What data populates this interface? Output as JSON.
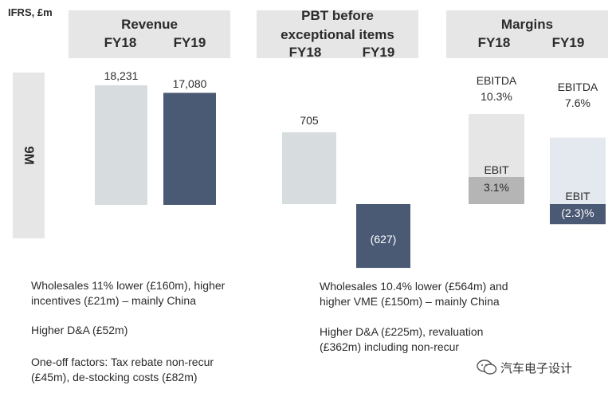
{
  "unit_label": "IFRS, £m",
  "period_label": "9M",
  "chart_data": [
    {
      "type": "bar",
      "title": "Revenue",
      "categories": [
        "FY18",
        "FY19"
      ],
      "values": [
        18231,
        17080
      ],
      "labels": [
        "18,231",
        "17,080"
      ],
      "colors": [
        "#d7dcdf",
        "#4b5a74"
      ]
    },
    {
      "type": "bar",
      "title": "PBT before exceptional items",
      "title_lines": [
        "PBT before",
        "exceptional items"
      ],
      "categories": [
        "FY18",
        "FY19"
      ],
      "values": [
        705,
        -627
      ],
      "labels": [
        "705",
        "(627)"
      ],
      "colors": [
        "#d7dcdf",
        "#4b5a74"
      ]
    },
    {
      "type": "bar",
      "title": "Margins",
      "categories": [
        "FY18",
        "FY19"
      ],
      "series": [
        {
          "name": "EBITDA",
          "values": [
            10.3,
            7.6
          ],
          "labels": [
            "10.3%",
            "7.6%"
          ]
        },
        {
          "name": "EBIT",
          "values": [
            3.1,
            -2.3
          ],
          "labels": [
            "3.1%",
            "(2.3)%"
          ]
        }
      ],
      "colors": {
        "fy18_ebitda": "#e6e6e6",
        "fy18_ebit": "#b5b5b5",
        "fy19_ebitda": "#e3e9ef",
        "fy19_ebit": "#4b5a74"
      }
    }
  ],
  "notes_left": [
    [
      "Wholesales 11% lower (£160m), higher",
      "incentives (£21m) – mainly China"
    ],
    [
      "Higher D&A (£52m)"
    ],
    [
      "One-off factors: Tax rebate non-recur",
      "(£45m), de-stocking costs (£82m)"
    ]
  ],
  "notes_right": [
    [
      "Wholesales 10.4% lower (£564m) and",
      "higher VME (£150m) – mainly China"
    ],
    [
      "Higher D&A (£225m), revaluation",
      "(£362m) including non-recur"
    ]
  ],
  "watermark": "汽车电子设计"
}
